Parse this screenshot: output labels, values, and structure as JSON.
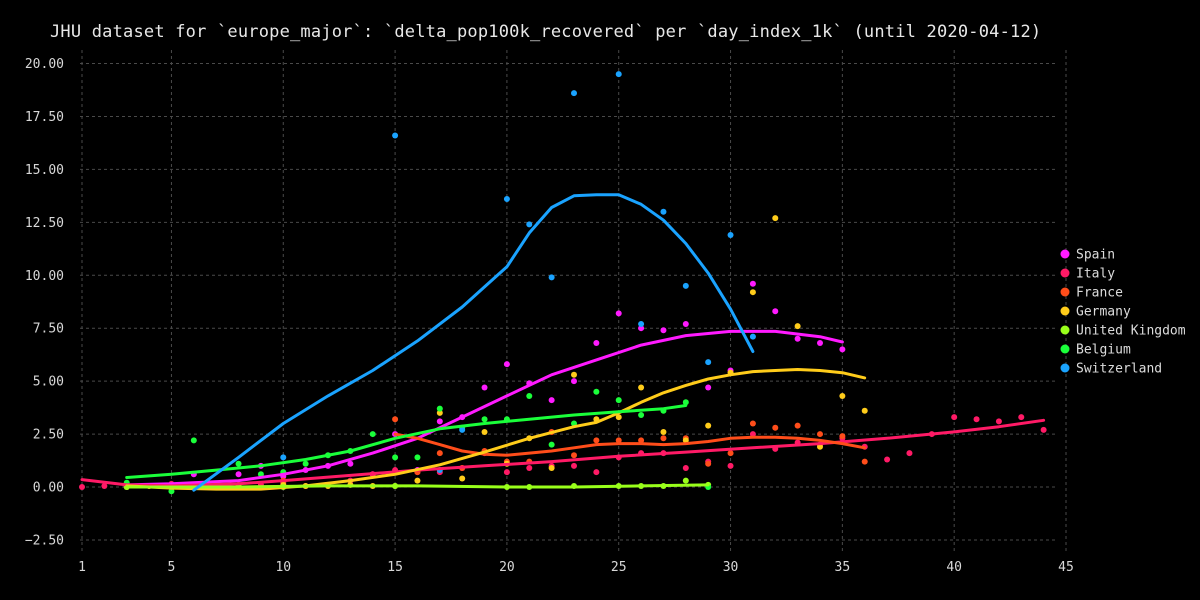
{
  "chart_data": {
    "type": "scatter",
    "title": "JHU dataset for `europe_major`: `delta_pop100k_recovered` per `day_index_1k` (until 2020-04-12)",
    "xlabel": "",
    "ylabel": "",
    "xlim": [
      0.5,
      45
    ],
    "ylim": [
      -2.6,
      20.6
    ],
    "x_ticks": [
      1,
      5,
      10,
      15,
      20,
      25,
      30,
      35,
      40,
      45
    ],
    "x_tick_labels": [
      "1",
      "5",
      "10",
      "15",
      "20",
      "25",
      "30",
      "35",
      "40",
      "45"
    ],
    "y_ticks": [
      -2.5,
      0,
      2.5,
      5,
      7.5,
      10,
      12.5,
      15,
      17.5,
      20
    ],
    "y_tick_labels": [
      "−2.50",
      "0.00",
      "2.50",
      "5.00",
      "7.50",
      "10.00",
      "12.50",
      "15.00",
      "17.50",
      "20.00"
    ],
    "grid": true,
    "legend_position": "right",
    "background": "#000000",
    "series": [
      {
        "name": "Spain",
        "color": "#ff1aff",
        "points": [
          [
            3,
            0.05
          ],
          [
            5,
            0.1
          ],
          [
            6,
            0.6
          ],
          [
            8,
            0.6
          ],
          [
            9,
            1.0
          ],
          [
            10,
            0.5
          ],
          [
            11,
            0.8
          ],
          [
            12,
            1.0
          ],
          [
            13,
            1.1
          ],
          [
            14,
            0.6
          ],
          [
            15,
            2.5
          ],
          [
            16,
            0.8
          ],
          [
            17,
            3.1
          ],
          [
            18,
            3.3
          ],
          [
            19,
            4.7
          ],
          [
            20,
            5.8
          ],
          [
            21,
            4.9
          ],
          [
            22,
            4.1
          ],
          [
            23,
            5.0
          ],
          [
            24,
            6.8
          ],
          [
            25,
            8.2
          ],
          [
            26,
            7.5
          ],
          [
            27,
            7.4
          ],
          [
            28,
            7.7
          ],
          [
            29,
            4.7
          ],
          [
            30,
            5.5
          ],
          [
            31,
            9.6
          ],
          [
            32,
            8.3
          ],
          [
            33,
            7.0
          ],
          [
            34,
            6.8
          ],
          [
            35,
            6.5
          ]
        ],
        "fit": [
          [
            3,
            0.1
          ],
          [
            5,
            0.15
          ],
          [
            8,
            0.3
          ],
          [
            10,
            0.6
          ],
          [
            12,
            1.0
          ],
          [
            14,
            1.6
          ],
          [
            16,
            2.3
          ],
          [
            18,
            3.3
          ],
          [
            20,
            4.3
          ],
          [
            22,
            5.3
          ],
          [
            24,
            6.0
          ],
          [
            26,
            6.7
          ],
          [
            28,
            7.15
          ],
          [
            30,
            7.35
          ],
          [
            32,
            7.35
          ],
          [
            34,
            7.1
          ],
          [
            35,
            6.85
          ]
        ]
      },
      {
        "name": "Italy",
        "color": "#ff1a66",
        "points": [
          [
            1,
            0.0
          ],
          [
            2,
            0.05
          ],
          [
            4,
            0.05
          ],
          [
            5,
            0.15
          ],
          [
            6,
            0.1
          ],
          [
            7,
            0.1
          ],
          [
            8,
            0.1
          ],
          [
            9,
            0.1
          ],
          [
            10,
            0.2
          ],
          [
            11,
            0.05
          ],
          [
            12,
            0.1
          ],
          [
            13,
            0.3
          ],
          [
            14,
            0.6
          ],
          [
            15,
            0.8
          ],
          [
            16,
            0.7
          ],
          [
            17,
            0.7
          ],
          [
            18,
            0.9
          ],
          [
            19,
            1.6
          ],
          [
            20,
            0.7
          ],
          [
            21,
            0.9
          ],
          [
            22,
            1.0
          ],
          [
            23,
            1.0
          ],
          [
            24,
            0.7
          ],
          [
            25,
            1.4
          ],
          [
            26,
            1.6
          ],
          [
            27,
            1.6
          ],
          [
            28,
            0.9
          ],
          [
            29,
            1.2
          ],
          [
            30,
            1.0
          ],
          [
            31,
            2.5
          ],
          [
            32,
            1.8
          ],
          [
            33,
            2.1
          ],
          [
            34,
            2.0
          ],
          [
            35,
            2.3
          ],
          [
            36,
            1.9
          ],
          [
            37,
            1.3
          ],
          [
            38,
            1.6
          ],
          [
            39,
            2.5
          ],
          [
            40,
            3.3
          ],
          [
            41,
            3.2
          ],
          [
            42,
            3.1
          ],
          [
            43,
            3.3
          ],
          [
            44,
            2.7
          ]
        ],
        "fit": [
          [
            1,
            0.35
          ],
          [
            3,
            0.1
          ],
          [
            5,
            0.05
          ],
          [
            8,
            0.15
          ],
          [
            10,
            0.3
          ],
          [
            13,
            0.55
          ],
          [
            16,
            0.8
          ],
          [
            19,
            1.0
          ],
          [
            22,
            1.2
          ],
          [
            25,
            1.45
          ],
          [
            28,
            1.65
          ],
          [
            31,
            1.85
          ],
          [
            34,
            2.05
          ],
          [
            37,
            2.3
          ],
          [
            40,
            2.6
          ],
          [
            42,
            2.85
          ],
          [
            44,
            3.15
          ]
        ]
      },
      {
        "name": "France",
        "color": "#ff4d1a",
        "points": [
          [
            5,
            0.0
          ],
          [
            8,
            0.0
          ],
          [
            10,
            0.3
          ],
          [
            15,
            3.2
          ],
          [
            16,
            0.7
          ],
          [
            17,
            1.6
          ],
          [
            18,
            0.9
          ],
          [
            19,
            1.7
          ],
          [
            20,
            1.2
          ],
          [
            21,
            1.2
          ],
          [
            22,
            2.6
          ],
          [
            23,
            1.5
          ],
          [
            24,
            2.2
          ],
          [
            25,
            2.2
          ],
          [
            26,
            2.2
          ],
          [
            27,
            2.3
          ],
          [
            28,
            2.3
          ],
          [
            29,
            1.1
          ],
          [
            30,
            1.6
          ],
          [
            31,
            3.0
          ],
          [
            32,
            2.8
          ],
          [
            33,
            2.9
          ],
          [
            34,
            2.5
          ],
          [
            35,
            2.4
          ],
          [
            36,
            1.2
          ]
        ],
        "fit": [
          [
            15,
            2.5
          ],
          [
            16,
            2.3
          ],
          [
            17,
            2.0
          ],
          [
            18,
            1.7
          ],
          [
            19,
            1.55
          ],
          [
            20,
            1.5
          ],
          [
            21,
            1.6
          ],
          [
            22,
            1.7
          ],
          [
            23,
            1.85
          ],
          [
            24,
            2.0
          ],
          [
            25,
            2.05
          ],
          [
            26,
            2.05
          ],
          [
            27,
            2.0
          ],
          [
            28,
            2.05
          ],
          [
            29,
            2.15
          ],
          [
            30,
            2.3
          ],
          [
            31,
            2.35
          ],
          [
            32,
            2.35
          ],
          [
            33,
            2.3
          ],
          [
            34,
            2.2
          ],
          [
            35,
            2.05
          ],
          [
            36,
            1.85
          ]
        ]
      },
      {
        "name": "Germany",
        "color": "#ffcc1a",
        "points": [
          [
            3,
            0.0
          ],
          [
            4,
            0.05
          ],
          [
            5,
            0.0
          ],
          [
            8,
            0.05
          ],
          [
            10,
            0.1
          ],
          [
            11,
            0.05
          ],
          [
            12,
            0.05
          ],
          [
            13,
            0.1
          ],
          [
            14,
            0.05
          ],
          [
            15,
            0.05
          ],
          [
            16,
            0.3
          ],
          [
            17,
            3.5
          ],
          [
            18,
            0.4
          ],
          [
            19,
            2.6
          ],
          [
            20,
            1.1
          ],
          [
            21,
            2.3
          ],
          [
            22,
            0.9
          ],
          [
            23,
            5.3
          ],
          [
            24,
            3.2
          ],
          [
            25,
            3.3
          ],
          [
            26,
            4.7
          ],
          [
            27,
            2.6
          ],
          [
            28,
            2.2
          ],
          [
            29,
            2.9
          ],
          [
            30,
            5.4
          ],
          [
            31,
            9.2
          ],
          [
            32,
            12.7
          ],
          [
            33,
            7.6
          ],
          [
            34,
            1.9
          ],
          [
            35,
            4.3
          ],
          [
            36,
            3.6
          ]
        ],
        "fit": [
          [
            3,
            0.05
          ],
          [
            5,
            -0.05
          ],
          [
            7,
            -0.1
          ],
          [
            9,
            -0.1
          ],
          [
            11,
            0.05
          ],
          [
            13,
            0.3
          ],
          [
            15,
            0.6
          ],
          [
            17,
            1.05
          ],
          [
            19,
            1.65
          ],
          [
            21,
            2.3
          ],
          [
            23,
            2.85
          ],
          [
            24,
            3.05
          ],
          [
            25,
            3.5
          ],
          [
            26,
            4.0
          ],
          [
            27,
            4.45
          ],
          [
            28,
            4.8
          ],
          [
            29,
            5.1
          ],
          [
            30,
            5.3
          ],
          [
            31,
            5.45
          ],
          [
            32,
            5.5
          ],
          [
            33,
            5.55
          ],
          [
            34,
            5.5
          ],
          [
            35,
            5.4
          ],
          [
            36,
            5.15
          ]
        ]
      },
      {
        "name": "United Kingdom",
        "color": "#99ff1a",
        "points": [
          [
            3,
            0.0
          ],
          [
            8,
            0.0
          ],
          [
            10,
            0.0
          ],
          [
            15,
            0.05
          ],
          [
            20,
            0.0
          ],
          [
            21,
            0.0
          ],
          [
            23,
            0.05
          ],
          [
            25,
            0.05
          ],
          [
            26,
            0.05
          ],
          [
            27,
            0.05
          ],
          [
            28,
            0.3
          ],
          [
            29,
            0.1
          ]
        ],
        "fit": [
          [
            3,
            0.0
          ],
          [
            8,
            0.0
          ],
          [
            12,
            0.05
          ],
          [
            16,
            0.05
          ],
          [
            20,
            0.0
          ],
          [
            23,
            0.0
          ],
          [
            26,
            0.05
          ],
          [
            29,
            0.1
          ]
        ]
      },
      {
        "name": "Belgium",
        "color": "#1aff3a",
        "points": [
          [
            3,
            0.2
          ],
          [
            5,
            -0.2
          ],
          [
            6,
            2.2
          ],
          [
            8,
            1.1
          ],
          [
            9,
            0.6
          ],
          [
            10,
            0.7
          ],
          [
            11,
            1.1
          ],
          [
            12,
            1.5
          ],
          [
            13,
            1.7
          ],
          [
            14,
            2.5
          ],
          [
            15,
            1.4
          ],
          [
            16,
            1.4
          ],
          [
            17,
            3.7
          ],
          [
            18,
            2.8
          ],
          [
            19,
            3.2
          ],
          [
            20,
            3.2
          ],
          [
            21,
            4.3
          ],
          [
            22,
            2.0
          ],
          [
            23,
            3.0
          ],
          [
            24,
            4.5
          ],
          [
            25,
            4.1
          ],
          [
            26,
            3.4
          ],
          [
            27,
            3.6
          ],
          [
            28,
            4.0
          ],
          [
            29,
            0.0
          ]
        ],
        "fit": [
          [
            3,
            0.45
          ],
          [
            5,
            0.6
          ],
          [
            7,
            0.8
          ],
          [
            9,
            1.0
          ],
          [
            11,
            1.3
          ],
          [
            13,
            1.7
          ],
          [
            15,
            2.3
          ],
          [
            17,
            2.75
          ],
          [
            19,
            3.0
          ],
          [
            21,
            3.2
          ],
          [
            23,
            3.4
          ],
          [
            25,
            3.55
          ],
          [
            27,
            3.7
          ],
          [
            28,
            3.85
          ]
        ]
      },
      {
        "name": "Switzerland",
        "color": "#1aa3ff",
        "points": [
          [
            10,
            1.4
          ],
          [
            15,
            16.6
          ],
          [
            17,
            0.8
          ],
          [
            18,
            2.7
          ],
          [
            20,
            13.6
          ],
          [
            21,
            12.4
          ],
          [
            22,
            9.9
          ],
          [
            23,
            18.6
          ],
          [
            25,
            19.5
          ],
          [
            26,
            7.7
          ],
          [
            27,
            13.0
          ],
          [
            28,
            9.5
          ],
          [
            29,
            5.9
          ],
          [
            30,
            11.9
          ],
          [
            31,
            7.1
          ]
        ],
        "fit": [
          [
            6,
            -0.15
          ],
          [
            8,
            1.4
          ],
          [
            10,
            3.0
          ],
          [
            12,
            4.3
          ],
          [
            14,
            5.5
          ],
          [
            16,
            6.9
          ],
          [
            18,
            8.5
          ],
          [
            19,
            9.45
          ],
          [
            20,
            10.4
          ],
          [
            21,
            12.0
          ],
          [
            22,
            13.2
          ],
          [
            23,
            13.75
          ],
          [
            24,
            13.8
          ],
          [
            25,
            13.8
          ],
          [
            26,
            13.35
          ],
          [
            27,
            12.6
          ],
          [
            28,
            11.5
          ],
          [
            29,
            10.1
          ],
          [
            30,
            8.4
          ],
          [
            31,
            6.4
          ]
        ]
      }
    ]
  }
}
